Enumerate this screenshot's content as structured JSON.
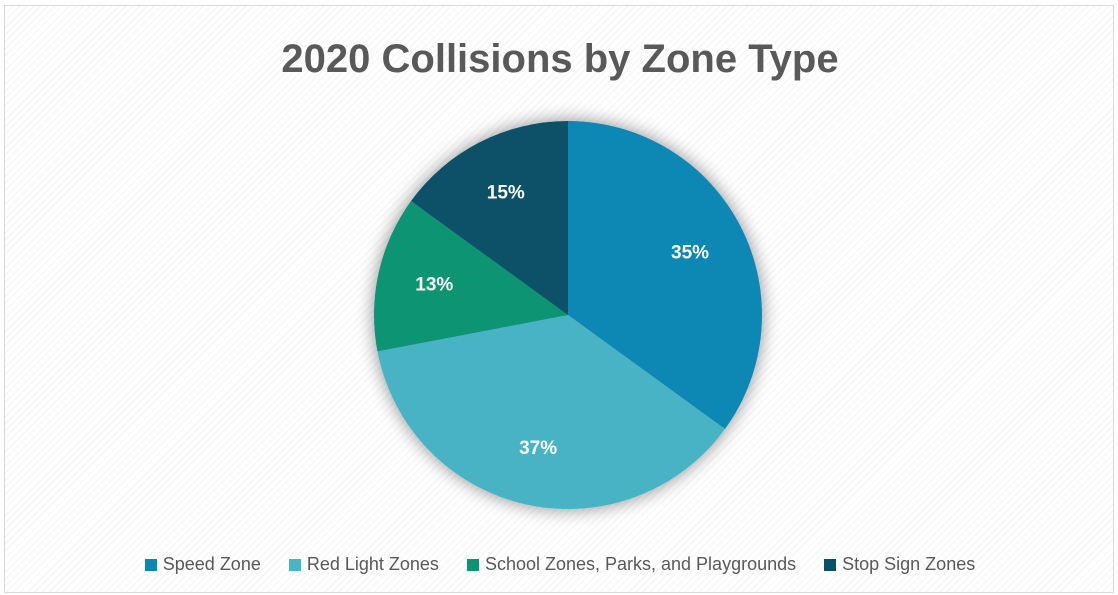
{
  "chart_data": {
    "type": "pie",
    "title": "2020 Collisions by Zone Type",
    "categories": [
      "Speed Zone",
      "Red Light Zones",
      "School Zones, Parks, and Playgrounds",
      "Stop Sign Zones"
    ],
    "values": [
      35,
      37,
      13,
      15
    ],
    "labels": [
      "35%",
      "37%",
      "13%",
      "15%"
    ],
    "colors": [
      "#0b87b3",
      "#4ab3c6",
      "#0a9473",
      "#075168"
    ],
    "start_angle_deg": 0,
    "direction": "clockwise",
    "legend_position": "bottom"
  }
}
